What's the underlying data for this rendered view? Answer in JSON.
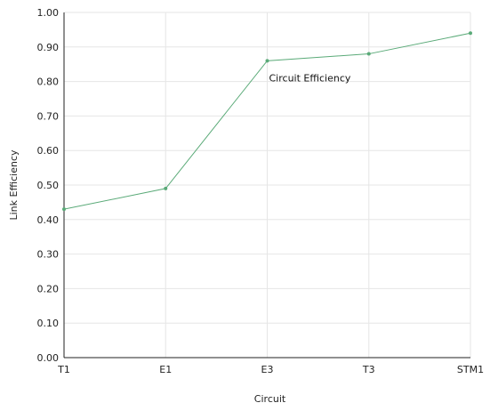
{
  "chart_data": {
    "type": "line",
    "categories": [
      "T1",
      "E1",
      "E3",
      "T3",
      "STM1"
    ],
    "series": [
      {
        "values": [
          0.43,
          0.49,
          0.86,
          0.88,
          0.94
        ]
      }
    ],
    "xlabel": "Circuit",
    "ylabel": "Link Efficiency",
    "ylim": [
      0,
      1
    ],
    "yticks": [
      "0.00",
      "0.10",
      "0.20",
      "0.30",
      "0.40",
      "0.50",
      "0.60",
      "0.70",
      "0.80",
      "0.90",
      "1.00"
    ],
    "annotations": [
      {
        "text": "Circuit Efficiency",
        "category": "E3",
        "value": 0.81
      }
    ],
    "grid": true,
    "legend": "none",
    "colors": {
      "line": "#5aaa78",
      "grid": "#e6e6e6",
      "axis": "#222222"
    }
  }
}
